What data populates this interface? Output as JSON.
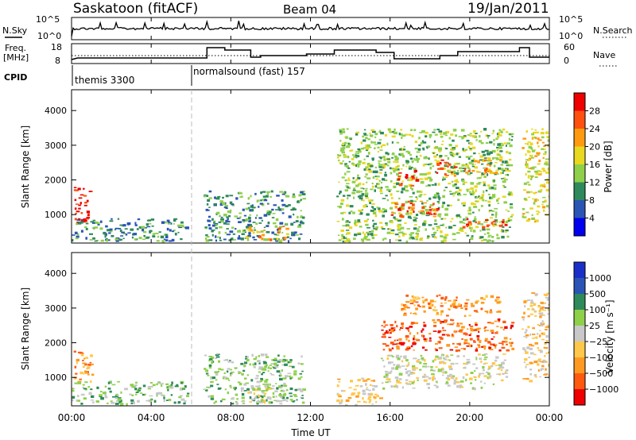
{
  "header": {
    "station": "Saskatoon (fitACF)",
    "beam": "Beam 04",
    "date": "19/Jan/2011"
  },
  "noise_panel": {
    "left_label": "N.Sky",
    "right_label": "N.Search",
    "left_ticks": [
      "10^5",
      "10^0"
    ],
    "right_ticks": [
      "10^5",
      "10^0"
    ]
  },
  "freq_panel": {
    "left_label_1": "Freq.",
    "left_label_2": "[MHz]",
    "left_ticks": [
      "18",
      "8"
    ],
    "right_label": "Nave",
    "right_ticks": [
      "60",
      "0"
    ]
  },
  "cpid": {
    "label": "CPID",
    "programs": [
      {
        "name": "themis 3300",
        "start_hour": 0
      },
      {
        "name": "normalsound (fast) 157",
        "start_hour": 6.8
      }
    ]
  },
  "x_axis": {
    "label": "Time UT",
    "ticks": [
      "00:00",
      "04:00",
      "08:00",
      "12:00",
      "16:00",
      "20:00",
      "00:00"
    ],
    "tick_hours": [
      0,
      4,
      8,
      12,
      16,
      20,
      24
    ]
  },
  "y_axis": {
    "label": "Slant Range [km]",
    "ticks": [
      "1000",
      "2000",
      "3000",
      "4000"
    ],
    "tick_values": [
      1000,
      2000,
      3000,
      4000
    ],
    "range": [
      180,
      4600
    ]
  },
  "chart_data": [
    {
      "type": "heatmap",
      "panel": "power",
      "colorbar_label": "Power [dB]",
      "colorbar_ticks": [
        "28",
        "24",
        "20",
        "16",
        "12",
        "8",
        "4"
      ],
      "colors": [
        "#0000ee",
        "#2a55b5",
        "#2e8a5a",
        "#8ed04a",
        "#e8d820",
        "#ff9a10",
        "#ff5010",
        "#ee0000"
      ],
      "blobs": [
        {
          "t0": 0.1,
          "t1": 1.0,
          "r0": 780,
          "r1": 1800,
          "level": 7
        },
        {
          "t0": 0.0,
          "t1": 5.8,
          "r0": 250,
          "r1": 900,
          "level": 2
        },
        {
          "t0": 6.6,
          "t1": 11.6,
          "r0": 250,
          "r1": 1700,
          "level": 2
        },
        {
          "t0": 8.7,
          "t1": 10.8,
          "r0": 300,
          "r1": 700,
          "level": 5
        },
        {
          "t0": 13.3,
          "t1": 22.1,
          "r0": 250,
          "r1": 3500,
          "level": 3
        },
        {
          "t0": 16.3,
          "t1": 17.3,
          "r0": 1850,
          "r1": 2300,
          "level": 7
        },
        {
          "t0": 18.3,
          "t1": 19.3,
          "r0": 2150,
          "r1": 2600,
          "level": 6
        },
        {
          "t0": 19.7,
          "t1": 21.6,
          "r0": 2200,
          "r1": 2600,
          "level": 5
        },
        {
          "t0": 16.0,
          "t1": 18.5,
          "r0": 950,
          "r1": 1400,
          "level": 6
        },
        {
          "t0": 19.5,
          "t1": 21.8,
          "r0": 650,
          "r1": 900,
          "level": 6
        },
        {
          "t0": 22.6,
          "t1": 24.0,
          "r0": 800,
          "r1": 3500,
          "level": 4
        }
      ]
    },
    {
      "type": "heatmap",
      "panel": "velocity",
      "colorbar_label": "Velocity [m s⁻¹]",
      "colorbar_ticks": [
        "1000",
        "500",
        "100",
        "25",
        "−25",
        "−100",
        "−500",
        "−1000"
      ],
      "colors": [
        "#ee0000",
        "#ff5a10",
        "#ff9a20",
        "#ffc84a",
        "#c8c8c8",
        "#8ed04a",
        "#2e8a5a",
        "#2a55b5",
        "#1a2fc8"
      ],
      "blobs": [
        {
          "t0": 0.1,
          "t1": 1.0,
          "r0": 780,
          "r1": 1800,
          "level": 2
        },
        {
          "t0": 0.0,
          "t1": 5.8,
          "r0": 250,
          "r1": 900,
          "level": 5
        },
        {
          "t0": 6.6,
          "t1": 11.6,
          "r0": 250,
          "r1": 1700,
          "level": 5
        },
        {
          "t0": 8.8,
          "t1": 10.8,
          "r0": 300,
          "r1": 800,
          "level": 4
        },
        {
          "t0": 13.3,
          "t1": 15.5,
          "r0": 200,
          "r1": 1000,
          "level": 3
        },
        {
          "t0": 15.5,
          "t1": 22.1,
          "r0": 1800,
          "r1": 2700,
          "level": 1
        },
        {
          "t0": 15.5,
          "t1": 21.8,
          "r0": 700,
          "r1": 1700,
          "level": 4
        },
        {
          "t0": 16.5,
          "t1": 21.5,
          "r0": 2800,
          "r1": 3400,
          "level": 2
        },
        {
          "t0": 22.6,
          "t1": 24.0,
          "r0": 900,
          "r1": 3500,
          "level": 3
        }
      ]
    }
  ]
}
